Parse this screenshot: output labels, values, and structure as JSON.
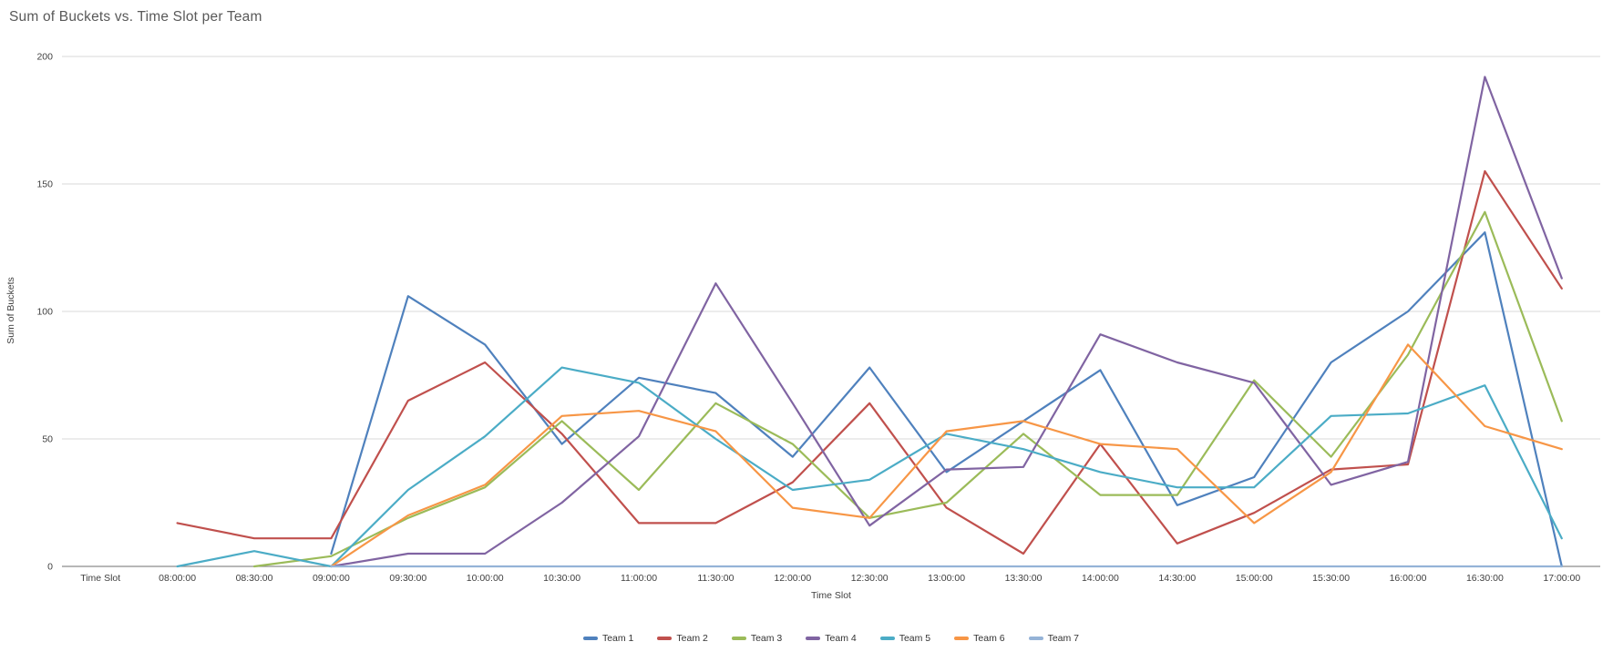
{
  "chart_data": {
    "type": "line",
    "title": "Sum of Buckets vs. Time Slot per Team",
    "xlabel": "Time Slot",
    "ylabel": "Sum of Buckets",
    "ylim": [
      0,
      200
    ],
    "yticks": [
      0,
      50,
      100,
      150,
      200
    ],
    "grid": "horizontal",
    "legend_position": "bottom",
    "gridline_color": "#D9D9D9",
    "axis_color": "#8C8C8C",
    "title_color": "#595959",
    "label_color": "#404040",
    "categories": [
      "Time Slot",
      "08:00:00",
      "08:30:00",
      "09:00:00",
      "09:30:00",
      "10:00:00",
      "10:30:00",
      "11:00:00",
      "11:30:00",
      "12:00:00",
      "12:30:00",
      "13:00:00",
      "13:30:00",
      "14:00:00",
      "14:30:00",
      "15:00:00",
      "15:30:00",
      "16:00:00",
      "16:30:00",
      "17:00:00"
    ],
    "series": [
      {
        "name": "Team 1",
        "color": "#4F81BD",
        "values": [
          null,
          null,
          null,
          5,
          106,
          87,
          48,
          74,
          68,
          43,
          78,
          37,
          57,
          77,
          24,
          35,
          80,
          100,
          131,
          0
        ]
      },
      {
        "name": "Team 2",
        "color": "#C0504D",
        "values": [
          null,
          17,
          11,
          11,
          65,
          80,
          52,
          17,
          17,
          33,
          64,
          23,
          5,
          48,
          9,
          21,
          38,
          40,
          155,
          109
        ]
      },
      {
        "name": "Team 3",
        "color": "#9BBB59",
        "values": [
          null,
          null,
          0,
          4,
          19,
          31,
          57,
          30,
          64,
          48,
          19,
          25,
          52,
          28,
          28,
          73,
          43,
          83,
          139,
          57
        ]
      },
      {
        "name": "Team 4",
        "color": "#8064A2",
        "values": [
          null,
          null,
          null,
          0,
          5,
          5,
          25,
          51,
          111,
          64,
          16,
          38,
          39,
          91,
          80,
          72,
          32,
          41,
          192,
          113
        ]
      },
      {
        "name": "Team 5",
        "color": "#4BACC6",
        "values": [
          null,
          0,
          6,
          0,
          30,
          51,
          78,
          72,
          50,
          30,
          34,
          52,
          46,
          37,
          31,
          31,
          59,
          60,
          71,
          11
        ]
      },
      {
        "name": "Team 6",
        "color": "#F79646",
        "values": [
          null,
          null,
          null,
          0,
          20,
          32,
          59,
          61,
          53,
          23,
          19,
          53,
          57,
          48,
          46,
          17,
          37,
          87,
          55,
          46
        ]
      },
      {
        "name": "Team 7",
        "color": "#95B3D7",
        "values": [
          null,
          null,
          null,
          0,
          0,
          0,
          0,
          0,
          0,
          0,
          0,
          0,
          0,
          0,
          0,
          0,
          0,
          0,
          0,
          0
        ]
      }
    ]
  }
}
